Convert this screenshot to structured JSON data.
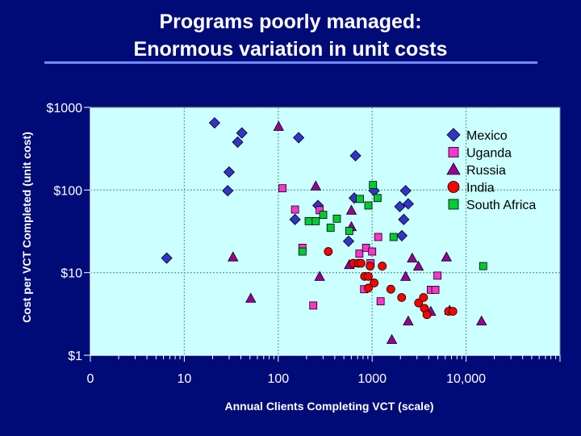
{
  "slide": {
    "title_line1": "Programs poorly managed:",
    "title_line2": "Enormous variation in unit costs"
  },
  "colors": {
    "background": "#000b78",
    "plot_area": "#ccffff",
    "grid": "#6aa6a6",
    "Mexico": "#3333cc",
    "Uganda": "#ff33cc",
    "Russia": "#990099",
    "India": "#ff0000",
    "South Africa": "#00cc33"
  },
  "chart_data": {
    "type": "scatter",
    "xlabel": "Annual Clients Completing VCT (scale)",
    "ylabel": "Cost per VCT Completed (unit cost)",
    "x_scale": "log",
    "y_scale": "log",
    "xlim": [
      1,
      100000
    ],
    "ylim": [
      1,
      1000
    ],
    "x_ticks": [
      {
        "value": 1,
        "label": "0"
      },
      {
        "value": 10,
        "label": "10"
      },
      {
        "value": 100,
        "label": "100"
      },
      {
        "value": 1000,
        "label": "1000"
      },
      {
        "value": 10000,
        "label": "10,000"
      }
    ],
    "y_ticks": [
      {
        "value": 1,
        "label": "$1"
      },
      {
        "value": 10,
        "label": "$10"
      },
      {
        "value": 100,
        "label": "$100"
      },
      {
        "value": 1000,
        "label": "$1000"
      }
    ],
    "grid": true,
    "legend_position": "top-right",
    "series": [
      {
        "name": "Mexico",
        "marker": "diamond",
        "points": [
          [
            6.5,
            15
          ],
          [
            21,
            650
          ],
          [
            30,
            165
          ],
          [
            29,
            98
          ],
          [
            37,
            380
          ],
          [
            41,
            490
          ],
          [
            151,
            44
          ],
          [
            165,
            430
          ],
          [
            265,
            65
          ],
          [
            561,
            24
          ],
          [
            645,
            80
          ],
          [
            665,
            260
          ],
          [
            1050,
            98
          ],
          [
            1970,
            63
          ],
          [
            2070,
            28
          ],
          [
            2170,
            44
          ],
          [
            2270,
            98
          ],
          [
            2420,
            68
          ]
        ]
      },
      {
        "name": "Uganda",
        "marker": "square",
        "points": [
          [
            111,
            105
          ],
          [
            151,
            58
          ],
          [
            181,
            20
          ],
          [
            236,
            4
          ],
          [
            276,
            57
          ],
          [
            731,
            17
          ],
          [
            821,
            6.3
          ],
          [
            861,
            20
          ],
          [
            961,
            13
          ],
          [
            1000,
            18
          ],
          [
            1160,
            27
          ],
          [
            1230,
            4.5
          ],
          [
            4210,
            6.2
          ],
          [
            4710,
            6.2
          ],
          [
            4960,
            9.2
          ]
        ]
      },
      {
        "name": "Russia",
        "marker": "triangle",
        "points": [
          [
            33,
            15.5
          ],
          [
            51,
            4.9
          ],
          [
            101,
            590
          ],
          [
            251,
            112
          ],
          [
            276,
            9
          ],
          [
            571,
            12.5
          ],
          [
            601,
            57
          ],
          [
            601,
            36
          ],
          [
            1620,
            1.55
          ],
          [
            2270,
            9
          ],
          [
            2420,
            2.6
          ],
          [
            2670,
            15
          ],
          [
            3110,
            12
          ],
          [
            4210,
            3.4
          ],
          [
            6180,
            15.5
          ],
          [
            6680,
            3.5
          ],
          [
            14600,
            2.6
          ]
        ]
      },
      {
        "name": "India",
        "marker": "circle",
        "points": [
          [
            341,
            18
          ],
          [
            631,
            13
          ],
          [
            711,
            13
          ],
          [
            761,
            13
          ],
          [
            831,
            9
          ],
          [
            911,
            9
          ],
          [
            911,
            6.5
          ],
          [
            951,
            12
          ],
          [
            1050,
            7.5
          ],
          [
            1280,
            12
          ],
          [
            1580,
            6.3
          ],
          [
            2060,
            5
          ],
          [
            3120,
            4.3
          ],
          [
            3520,
            5
          ],
          [
            3600,
            3.7
          ],
          [
            3830,
            3.1
          ],
          [
            6510,
            3.4
          ],
          [
            7230,
            3.4
          ]
        ]
      },
      {
        "name": "South Africa",
        "marker": "square",
        "points": [
          [
            181,
            18
          ],
          [
            211,
            42
          ],
          [
            251,
            42
          ],
          [
            301,
            50
          ],
          [
            361,
            35
          ],
          [
            421,
            45
          ],
          [
            571,
            32
          ],
          [
            741,
            78
          ],
          [
            911,
            65
          ],
          [
            1020,
            115
          ],
          [
            1140,
            80
          ],
          [
            1690,
            27
          ],
          [
            15200,
            12
          ]
        ]
      }
    ]
  }
}
